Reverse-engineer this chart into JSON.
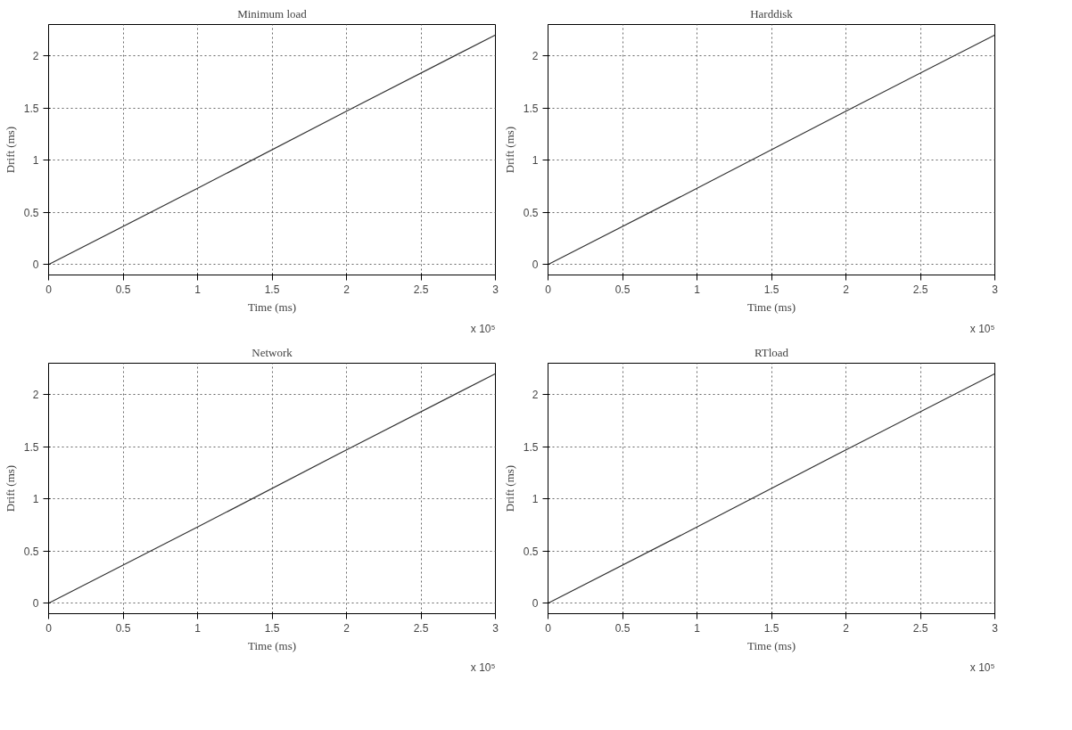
{
  "chart_data": [
    {
      "type": "line",
      "title": "Minimum load",
      "xlabel": "Time (ms)",
      "ylabel": "Drift (ms)",
      "x": [
        0,
        1,
        2,
        3
      ],
      "series": [
        {
          "color": "#333333",
          "values": [
            0,
            0.73,
            1.47,
            2.2
          ]
        }
      ],
      "xlim": [
        0,
        3
      ],
      "ylim": [
        -0.1,
        2.3
      ],
      "xticks": [
        0,
        0.5,
        1,
        1.5,
        2,
        2.5,
        3
      ],
      "yticks": [
        0,
        0.5,
        1,
        1.5,
        2
      ],
      "grid": true,
      "annotations": [
        "x 10⁵"
      ]
    },
    {
      "type": "line",
      "title": "Harddisk",
      "xlabel": "Time (ms)",
      "ylabel": "Drift (ms)",
      "x": [
        0,
        1,
        2,
        3
      ],
      "series": [
        {
          "color": "#333333",
          "values": [
            0,
            0.73,
            1.47,
            2.2
          ]
        }
      ],
      "xlim": [
        0,
        3
      ],
      "ylim": [
        -0.1,
        2.3
      ],
      "xticks": [
        0,
        0.5,
        1,
        1.5,
        2,
        2.5,
        3
      ],
      "yticks": [
        0,
        0.5,
        1,
        1.5,
        2
      ],
      "grid": true,
      "annotations": [
        "x 10⁵"
      ]
    },
    {
      "type": "line",
      "title": "Network",
      "xlabel": "Time (ms)",
      "ylabel": "Drift (ms)",
      "x": [
        0,
        1,
        2,
        3
      ],
      "series": [
        {
          "color": "#333333",
          "values": [
            0,
            0.73,
            1.47,
            2.2
          ]
        }
      ],
      "xlim": [
        0,
        3
      ],
      "ylim": [
        -0.1,
        2.3
      ],
      "xticks": [
        0,
        0.5,
        1,
        1.5,
        2,
        2.5,
        3
      ],
      "yticks": [
        0,
        0.5,
        1,
        1.5,
        2
      ],
      "grid": true,
      "annotations": [
        "x 10⁵"
      ]
    },
    {
      "type": "line",
      "title": "RTload",
      "xlabel": "Time (ms)",
      "ylabel": "Drift (ms)",
      "x": [
        0,
        1,
        2,
        3
      ],
      "series": [
        {
          "color": "#333333",
          "values": [
            0,
            0.73,
            1.47,
            2.2
          ]
        }
      ],
      "xlim": [
        0,
        3
      ],
      "ylim": [
        -0.1,
        2.3
      ],
      "xticks": [
        0,
        0.5,
        1,
        1.5,
        2,
        2.5,
        3
      ],
      "yticks": [
        0,
        0.5,
        1,
        1.5,
        2
      ],
      "grid": true,
      "annotations": [
        "x 10⁵"
      ]
    }
  ]
}
